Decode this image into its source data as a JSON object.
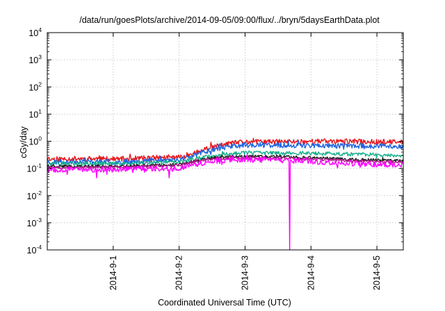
{
  "chart_data": {
    "type": "line",
    "title": "/data/run/goesPlots/archive/2014-09-05/09:00/flux/../bryn/5daysEarthData.plot",
    "xlabel": "Coordinated Universal Time (UTC)",
    "ylabel": "cGy/day",
    "yscale": "log",
    "ylim": [
      0.0001,
      10000
    ],
    "xlim": [
      0,
      5.4
    ],
    "grid": true,
    "x_ticks": [
      {
        "x": 1,
        "label": "2014-9-1"
      },
      {
        "x": 2,
        "label": "2014-9-2"
      },
      {
        "x": 3,
        "label": "2014-9-3"
      },
      {
        "x": 4,
        "label": "2014-9-4"
      },
      {
        "x": 5,
        "label": "2014-9-5"
      }
    ],
    "y_ticks": [
      {
        "value": 0.0001,
        "base": "10",
        "exp": "-4"
      },
      {
        "value": 0.001,
        "base": "10",
        "exp": "-3"
      },
      {
        "value": 0.01,
        "base": "10",
        "exp": "-2"
      },
      {
        "value": 0.1,
        "base": "10",
        "exp": "-1"
      },
      {
        "value": 1,
        "base": "10",
        "exp": "0"
      },
      {
        "value": 10,
        "base": "10",
        "exp": "1"
      },
      {
        "value": 100,
        "base": "10",
        "exp": "2"
      },
      {
        "value": 1000,
        "base": "10",
        "exp": "3"
      },
      {
        "value": 10000,
        "base": "10",
        "exp": "4"
      }
    ],
    "series": [
      {
        "color": "#e8151b",
        "x": [
          0,
          0.5,
          1,
          1.5,
          2,
          2.2,
          2.5,
          2.8,
          3,
          3.5,
          4,
          4.5,
          5,
          5.4
        ],
        "values": [
          0.22,
          0.23,
          0.22,
          0.24,
          0.26,
          0.35,
          0.6,
          0.85,
          0.95,
          0.95,
          1.0,
          1.0,
          0.95,
          0.92
        ],
        "noise": 0.22,
        "seed": 11
      },
      {
        "color": "#1e63e0",
        "x": [
          0,
          0.5,
          1,
          1.5,
          2,
          2.2,
          2.5,
          2.8,
          3,
          3.5,
          4,
          4.5,
          5,
          5.4
        ],
        "values": [
          0.17,
          0.18,
          0.17,
          0.19,
          0.21,
          0.3,
          0.5,
          0.65,
          0.72,
          0.72,
          0.7,
          0.68,
          0.66,
          0.65
        ],
        "noise": 0.22,
        "seed": 23
      },
      {
        "color": "#17b08c",
        "x": [
          0,
          0.5,
          1,
          1.5,
          2,
          2.2,
          2.5,
          2.8,
          3,
          3.5,
          4,
          4.5,
          5,
          5.4
        ],
        "values": [
          0.15,
          0.15,
          0.15,
          0.16,
          0.17,
          0.22,
          0.3,
          0.35,
          0.38,
          0.37,
          0.36,
          0.34,
          0.32,
          0.3
        ],
        "noise": 0.16,
        "seed": 37
      },
      {
        "color": "#1a1a1a",
        "x": [
          0,
          0.5,
          1,
          1.5,
          2,
          2.2,
          2.5,
          2.8,
          3,
          3.5,
          4,
          4.5,
          5,
          5.4
        ],
        "values": [
          0.12,
          0.12,
          0.12,
          0.13,
          0.14,
          0.18,
          0.24,
          0.27,
          0.28,
          0.27,
          0.25,
          0.22,
          0.2,
          0.19
        ],
        "noise": 0.12,
        "seed": 41
      },
      {
        "color": "#b01e8a",
        "x": [
          0,
          0.5,
          1,
          1.5,
          2,
          2.2,
          2.5,
          2.8,
          3,
          3.5,
          4,
          4.5,
          5,
          5.4
        ],
        "values": [
          0.11,
          0.11,
          0.11,
          0.12,
          0.13,
          0.17,
          0.22,
          0.24,
          0.25,
          0.24,
          0.22,
          0.2,
          0.18,
          0.17
        ],
        "noise": 0.12,
        "seed": 53
      },
      {
        "color": "#ff00ff",
        "x": [
          0,
          0.5,
          1,
          1.5,
          2,
          2.2,
          2.5,
          2.8,
          3,
          3.5,
          4,
          4.5,
          5,
          5.4
        ],
        "values": [
          0.09,
          0.09,
          0.09,
          0.1,
          0.1,
          0.14,
          0.18,
          0.2,
          0.21,
          0.2,
          0.18,
          0.16,
          0.14,
          0.13
        ],
        "noise": 0.22,
        "seed": 67,
        "dips": [
          [
            0.3,
            0.06
          ],
          [
            0.75,
            0.045
          ],
          [
            0.9,
            0.06
          ],
          [
            1.3,
            0.07
          ],
          [
            1.85,
            0.045
          ],
          [
            3.68,
            0.0001
          ]
        ]
      }
    ]
  }
}
